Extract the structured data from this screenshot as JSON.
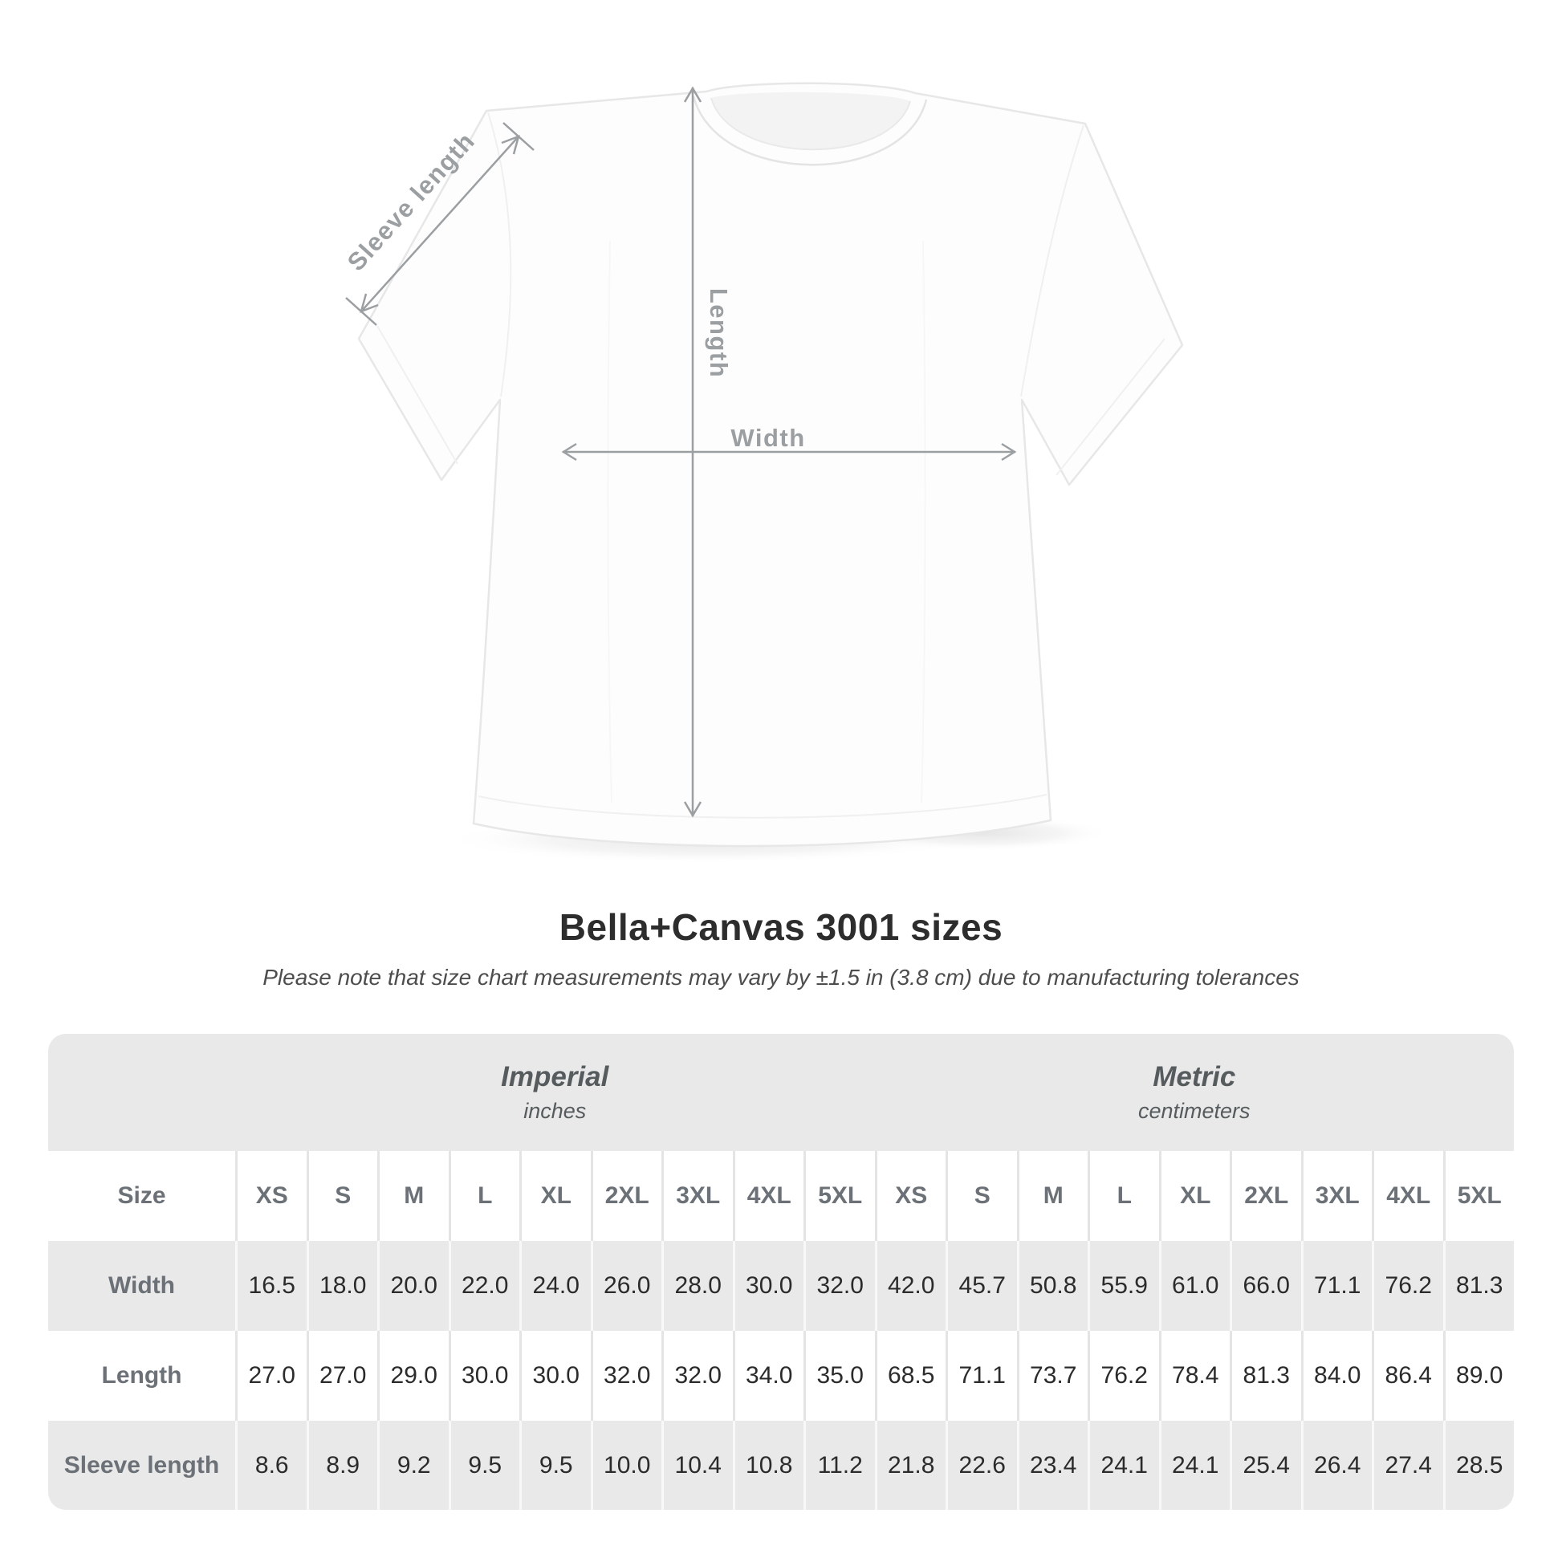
{
  "diagram": {
    "sleeve_label": "Sleeve length",
    "length_label": "Length",
    "width_label": "Width"
  },
  "title": "Bella+Canvas 3001 sizes",
  "subtitle": "Please note that size chart measurements may vary by ±1.5 in (3.8 cm) due to manufacturing tolerances",
  "table": {
    "sections": [
      {
        "label": "Imperial",
        "unit": "inches"
      },
      {
        "label": "Metric",
        "unit": "centimeters"
      }
    ],
    "size_header_label": "Size",
    "sizes": [
      "XS",
      "S",
      "M",
      "L",
      "XL",
      "2XL",
      "3XL",
      "4XL",
      "5XL"
    ],
    "rows": [
      {
        "label": "Width",
        "imperial": [
          "16.5",
          "18.0",
          "20.0",
          "22.0",
          "24.0",
          "26.0",
          "28.0",
          "30.0",
          "32.0"
        ],
        "metric": [
          "42.0",
          "45.7",
          "50.8",
          "55.9",
          "61.0",
          "66.0",
          "71.1",
          "76.2",
          "81.3"
        ]
      },
      {
        "label": "Length",
        "imperial": [
          "27.0",
          "27.0",
          "29.0",
          "30.0",
          "30.0",
          "32.0",
          "32.0",
          "34.0",
          "35.0"
        ],
        "metric": [
          "68.5",
          "71.1",
          "73.7",
          "76.2",
          "78.4",
          "81.3",
          "84.0",
          "86.4",
          "89.0"
        ]
      },
      {
        "label": "Sleeve length",
        "imperial": [
          "8.6",
          "8.9",
          "9.2",
          "9.5",
          "9.5",
          "10.0",
          "10.4",
          "10.8",
          "11.2"
        ],
        "metric": [
          "21.8",
          "22.6",
          "23.4",
          "24.1",
          "24.1",
          "25.4",
          "26.4",
          "27.4",
          "28.5"
        ]
      }
    ]
  },
  "colors": {
    "table_gray": "#e9e9e9",
    "annotation_gray": "#9b9fa2",
    "label_gray": "#6b7176",
    "value_dark": "#2b2b2b",
    "title_dark": "#2d2d2d"
  },
  "chart_data": {
    "type": "table",
    "title": "Bella+Canvas 3001 sizes",
    "columns": [
      "XS",
      "S",
      "M",
      "L",
      "XL",
      "2XL",
      "3XL",
      "4XL",
      "5XL"
    ],
    "sections": [
      "Imperial (inches)",
      "Metric (centimeters)"
    ],
    "rows": [
      {
        "label": "Width",
        "imperial": [
          16.5,
          18.0,
          20.0,
          22.0,
          24.0,
          26.0,
          28.0,
          30.0,
          32.0
        ],
        "metric": [
          42.0,
          45.7,
          50.8,
          55.9,
          61.0,
          66.0,
          71.1,
          76.2,
          81.3
        ]
      },
      {
        "label": "Length",
        "imperial": [
          27.0,
          27.0,
          29.0,
          30.0,
          30.0,
          32.0,
          32.0,
          34.0,
          35.0
        ],
        "metric": [
          68.5,
          71.1,
          73.7,
          76.2,
          78.4,
          81.3,
          84.0,
          86.4,
          89.0
        ]
      },
      {
        "label": "Sleeve length",
        "imperial": [
          8.6,
          8.9,
          9.2,
          9.5,
          9.5,
          10.0,
          10.4,
          10.8,
          11.2
        ],
        "metric": [
          21.8,
          22.6,
          23.4,
          24.1,
          24.1,
          25.4,
          26.4,
          27.4,
          28.5
        ]
      }
    ]
  }
}
